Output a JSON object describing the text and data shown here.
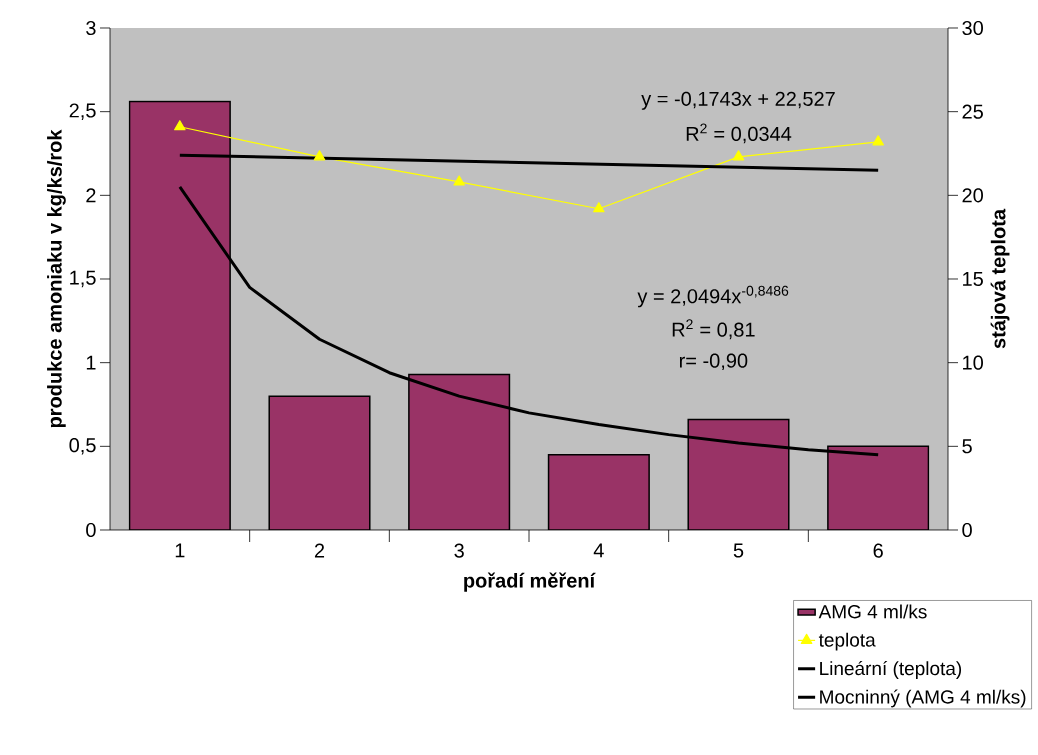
{
  "chart_data": {
    "type": "bar",
    "xlabel": "pořadí měření",
    "ylabel": "produkce amoniaku v kg/ks/rok",
    "y2label": "stájová teplota",
    "x": [
      1,
      2,
      3,
      4,
      5,
      6
    ],
    "xlim": [
      0.5,
      6.5
    ],
    "xticks": [
      1,
      2,
      3,
      4,
      5,
      6
    ],
    "ylim": [
      0,
      3
    ],
    "yticks": [
      0,
      {
        "value": 0.5,
        "label": "0,5"
      },
      1,
      {
        "value": 1.5,
        "label": "1,5"
      },
      2,
      {
        "value": 2.5,
        "label": "2,5"
      },
      3
    ],
    "y2lim": [
      0,
      30
    ],
    "y2ticks": [
      0,
      5,
      10,
      15,
      20,
      25,
      30
    ],
    "series": [
      {
        "name": "AMG 4 ml/ks",
        "color": "#993366",
        "values": [
          2.56,
          0.8,
          0.93,
          0.45,
          0.66,
          0.5
        ]
      },
      {
        "name": "teplota",
        "type": "line",
        "axis": "y2",
        "color": "#ffff00",
        "marker": "triangle",
        "values": [
          24.1,
          22.3,
          20.8,
          19.2,
          22.3,
          23.2
        ]
      },
      {
        "name": "Lineární (teplota)",
        "type": "line",
        "axis": "y2",
        "color": "#000000",
        "x": [
          1,
          6
        ],
        "values": [
          22.4,
          21.5
        ]
      },
      {
        "name": "Mocninný (AMG 4 ml/ks)",
        "type": "line",
        "color": "#000000",
        "x": [
          1,
          1.5,
          2,
          2.5,
          3,
          3.5,
          4,
          4.5,
          5,
          5.5,
          6
        ],
        "values": [
          2.05,
          1.45,
          1.14,
          0.94,
          0.8,
          0.7,
          0.63,
          0.57,
          0.52,
          0.48,
          0.45
        ]
      }
    ],
    "annotations": [
      "y = -0,1743x + 22,527",
      "R$^{2}$ = 0,0344",
      "y = 2,0494x$^{-0,8486}$",
      "R$^{2}$ = 0,81",
      "r= -0,90"
    ],
    "legend": "bottom right",
    "grid": false,
    "marker": "none",
    "line_style": "solid"
  }
}
